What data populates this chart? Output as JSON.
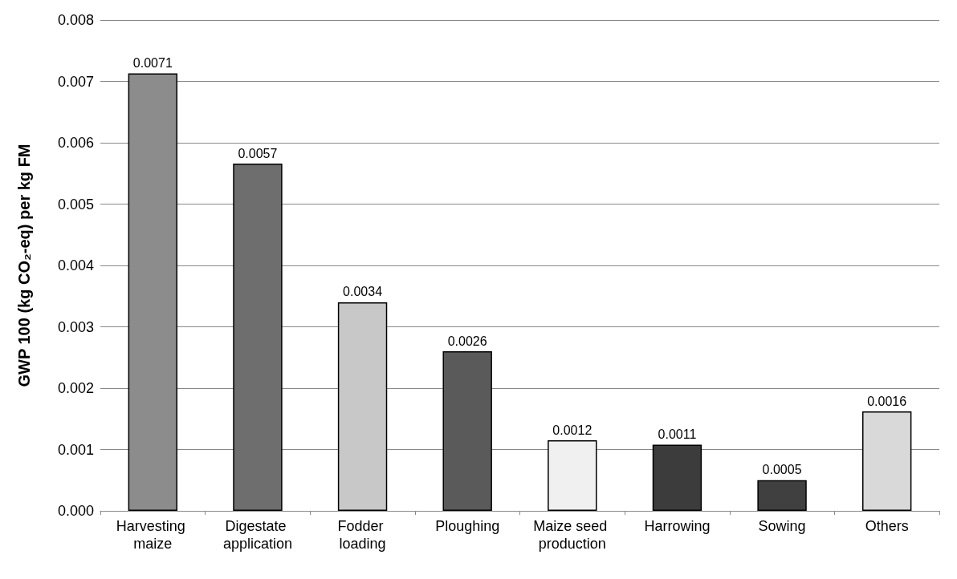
{
  "chart_data": {
    "type": "bar",
    "ylabel": "GWP 100 (kg CO₂-eq) per kg FM",
    "categories": [
      "Harvesting maize",
      "Digestate application",
      "Fodder loading",
      "Ploughing",
      "Maize seed production",
      "Harrowing",
      "Sowing",
      "Others"
    ],
    "values": [
      0.00713,
      0.00566,
      0.0034,
      0.0026,
      0.00115,
      0.00108,
      0.0005,
      0.00162
    ],
    "colors": [
      "#8c8c8c",
      "#6e6e6e",
      "#c8c8c8",
      "#5a5a5a",
      "#f0f0f0",
      "#3c3c3c",
      "#404040",
      "#d9d9d9"
    ],
    "value_labels": [
      "0.0071",
      "0.0057",
      "0.0034",
      "0.0026",
      "0.0012",
      "0.0011",
      "0.0005",
      "0.0016"
    ],
    "ylim": [
      0,
      0.008
    ],
    "yticks": [
      {
        "value": 0,
        "label": "0.000"
      },
      {
        "value": 0.001,
        "label": "0.001"
      },
      {
        "value": 0.002,
        "label": "0.002"
      },
      {
        "value": 0.003,
        "label": "0.003"
      },
      {
        "value": 0.004,
        "label": "0.004"
      },
      {
        "value": 0.005,
        "label": "0.005"
      },
      {
        "value": 0.006,
        "label": "0.006"
      },
      {
        "value": 0.007,
        "label": "0.007"
      },
      {
        "value": 0.008,
        "label": "0.008"
      }
    ],
    "grid": "y"
  }
}
